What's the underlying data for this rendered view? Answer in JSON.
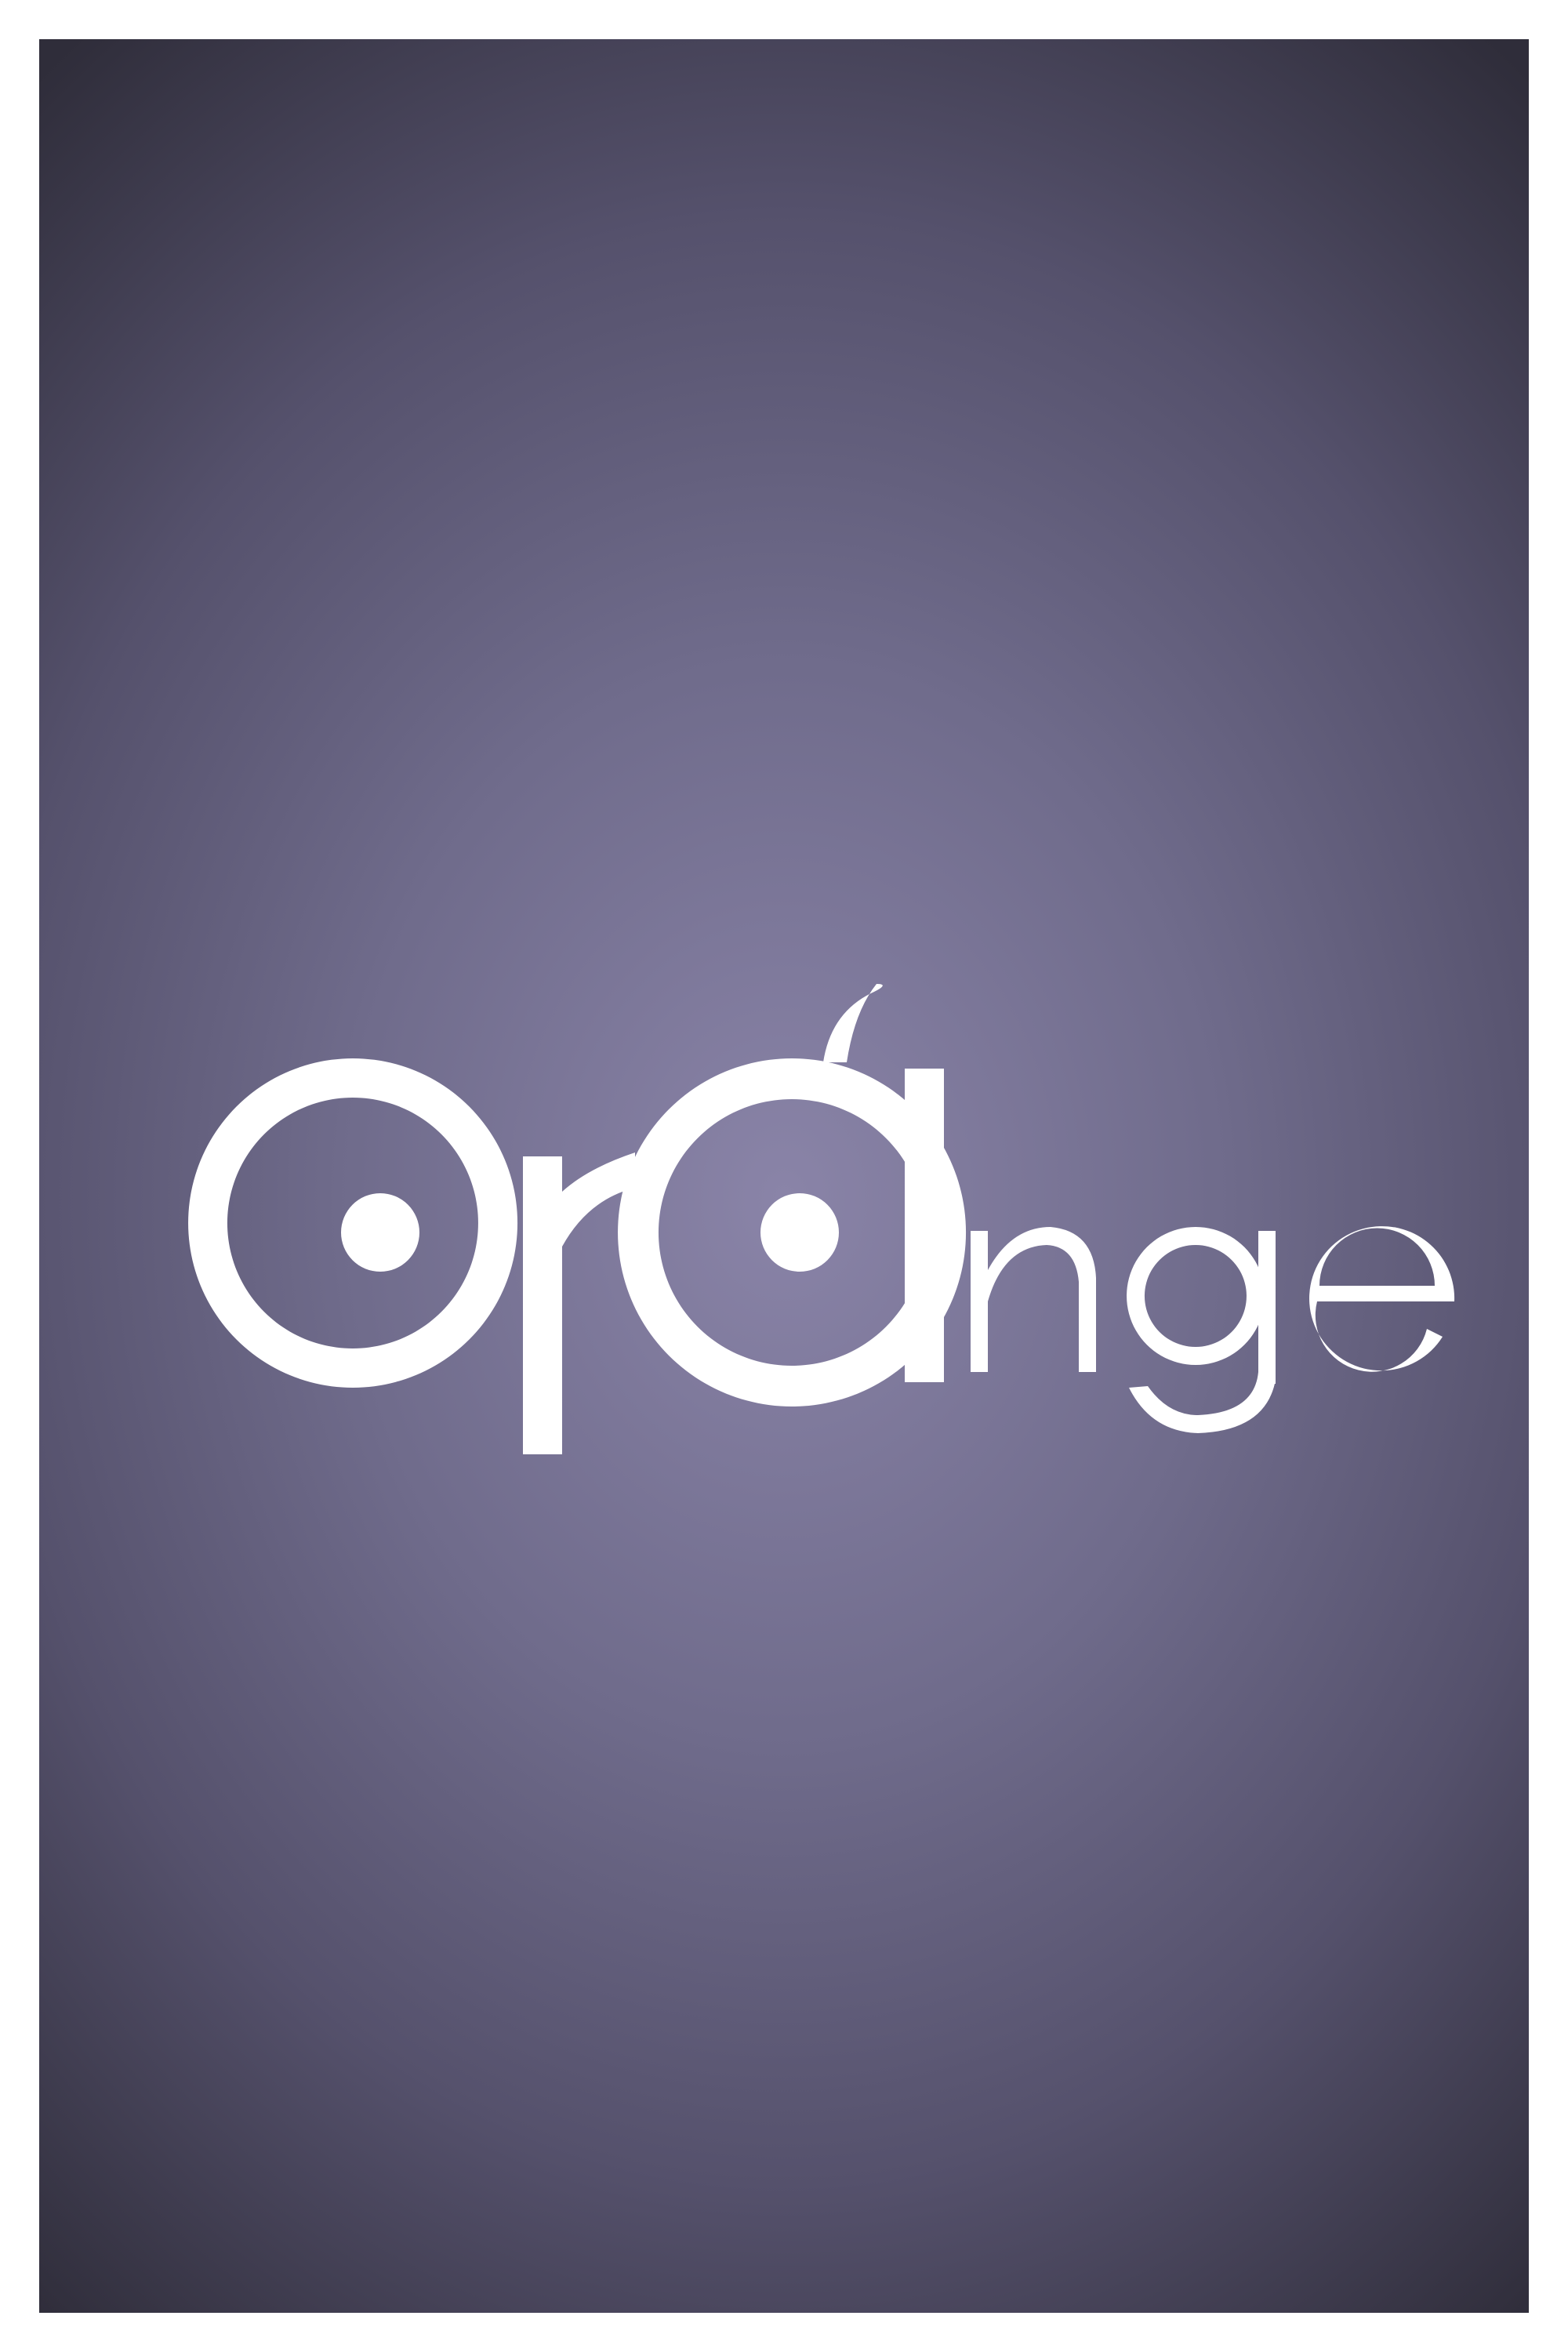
{
  "logo": {
    "wordmark": "orange",
    "color": "#ffffff"
  },
  "background": {
    "center_color": "#8a84a8",
    "edge_color": "#2f2d3a",
    "frame_color": "#ffffff"
  }
}
